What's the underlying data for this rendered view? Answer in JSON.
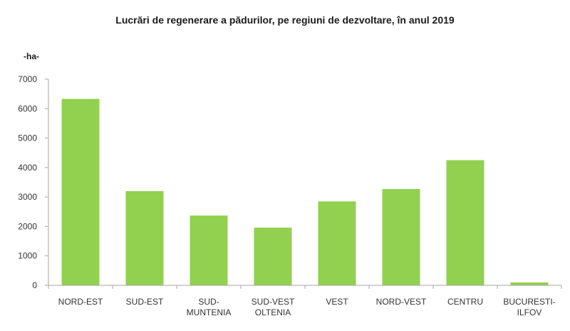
{
  "chart_data": {
    "type": "bar",
    "title": "Lucrări de regenerare a pădurilor, pe regiuni de dezvoltare, în anul 2019",
    "unit_label": "-ha-",
    "categories": [
      [
        "NORD-EST"
      ],
      [
        "SUD-EST"
      ],
      [
        "SUD-",
        "MUNTENIA"
      ],
      [
        "SUD-VEST",
        "OLTENIA"
      ],
      [
        "VEST"
      ],
      [
        "NORD-VEST"
      ],
      [
        "CENTRU"
      ],
      [
        "BUCURESTI-",
        "ILFOV"
      ]
    ],
    "values": [
      6330,
      3200,
      2370,
      1960,
      2850,
      3270,
      4250,
      100
    ],
    "ylim": [
      0,
      7000
    ],
    "yticks": [
      0,
      1000,
      2000,
      3000,
      4000,
      5000,
      6000,
      7000
    ],
    "bar_color": "#92d050",
    "axis_color": "#a6a6a6",
    "grid": false,
    "legend": "none"
  }
}
